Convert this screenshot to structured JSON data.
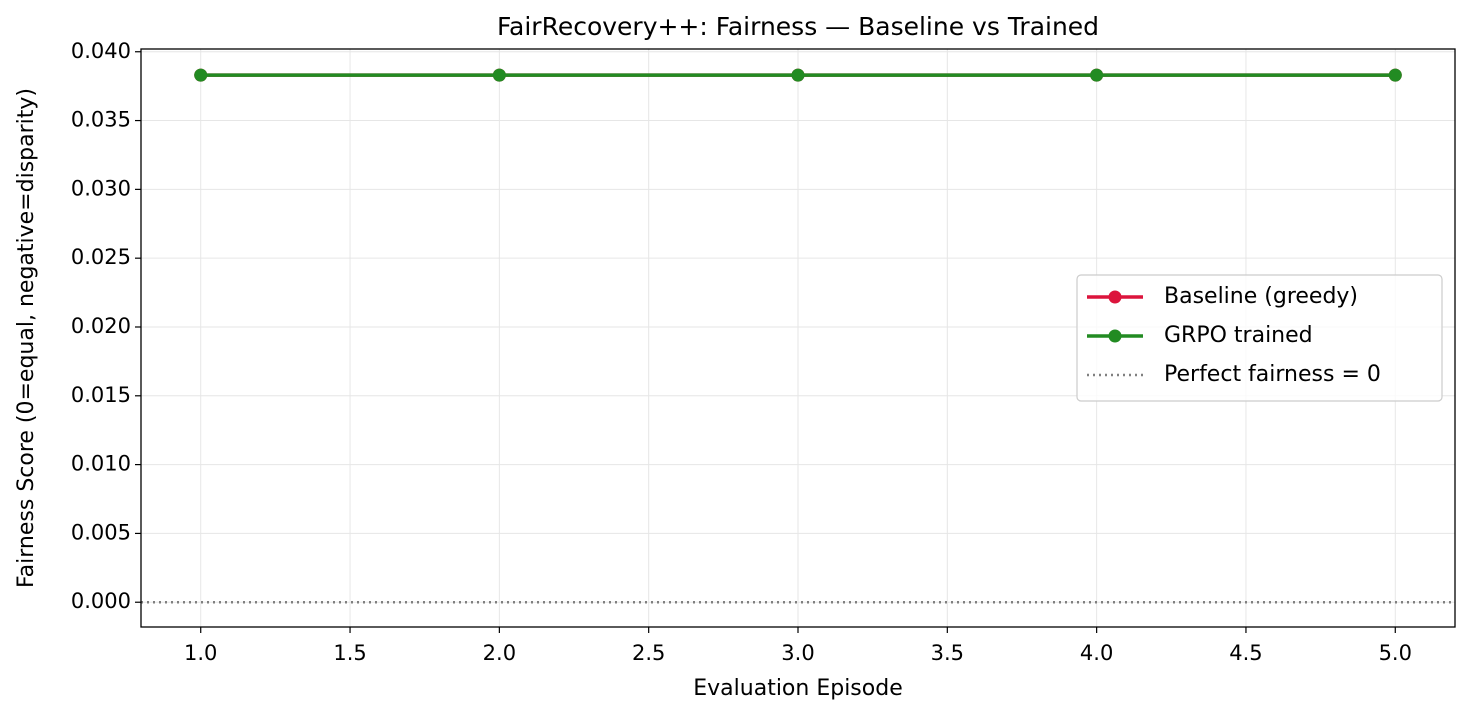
{
  "chart_data": {
    "type": "line",
    "title": "FairRecovery++: Fairness — Baseline vs Trained",
    "xlabel": "Evaluation Episode",
    "ylabel": "Fairness Score (0=equal, negative=disparity)",
    "x": [
      1,
      2,
      3,
      4,
      5
    ],
    "series": [
      {
        "name": "Baseline (greedy)",
        "color": "#dc143c",
        "values": [
          0.0383,
          0.0383,
          0.0383,
          0.0383,
          0.0383
        ]
      },
      {
        "name": "GRPO trained",
        "color": "#228b22",
        "values": [
          0.0383,
          0.0383,
          0.0383,
          0.0383,
          0.0383
        ]
      }
    ],
    "hline": {
      "name": "Perfect fairness = 0",
      "value": 0,
      "color": "#808080"
    },
    "xlim": [
      0.8,
      5.2
    ],
    "ylim": [
      -0.0018,
      0.0402
    ],
    "xticks": [
      {
        "value": 1,
        "label": "1.0"
      },
      1.5,
      {
        "value": 2,
        "label": "2.0"
      },
      2.5,
      {
        "value": 3,
        "label": "3.0"
      },
      3.5,
      {
        "value": 4,
        "label": "4.0"
      },
      4.5,
      {
        "value": 5,
        "label": "5.0"
      }
    ],
    "yticks": [
      {
        "value": 0,
        "label": "0.000"
      },
      0.005,
      {
        "value": 0.01,
        "label": "0.010"
      },
      0.015,
      {
        "value": 0.02,
        "label": "0.020"
      },
      0.025,
      {
        "value": 0.03,
        "label": "0.030"
      },
      0.035,
      {
        "value": 0.04,
        "label": "0.040"
      }
    ],
    "grid": true,
    "legend": "center right"
  }
}
